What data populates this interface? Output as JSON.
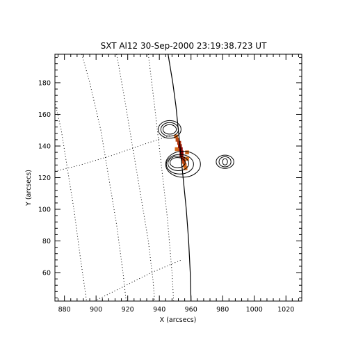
{
  "chart_data": {
    "type": "contour",
    "title": "SXT Al12 30-Sep-2000 23:19:38.723 UT",
    "xlabel": "X (arcsecs)",
    "ylabel": "Y (arcsecs)",
    "xlim": [
      874,
      1030
    ],
    "ylim": [
      42,
      198
    ],
    "xticks": [
      880,
      900,
      920,
      940,
      960,
      980,
      1000,
      1020
    ],
    "yticks": [
      60,
      80,
      100,
      120,
      140,
      160,
      180
    ],
    "xminor_step": 4,
    "yminor_step": 4,
    "grid": "heliographic (dotted)",
    "limb": [
      [
        945.5,
        198
      ],
      [
        948.5,
        180
      ],
      [
        950.5,
        165
      ],
      [
        952,
        150
      ],
      [
        953.5,
        135
      ],
      [
        955.5,
        115
      ],
      [
        957,
        100
      ],
      [
        958.5,
        80
      ],
      [
        959.5,
        60
      ],
      [
        960,
        42
      ]
    ],
    "grid_lines": [
      [
        [
          874,
          168
        ],
        [
          878,
          150
        ],
        [
          882,
          125
        ],
        [
          886,
          100
        ],
        [
          890,
          70
        ],
        [
          894,
          42
        ]
      ],
      [
        [
          891,
          198
        ],
        [
          896,
          180
        ],
        [
          903,
          150
        ],
        [
          908,
          120
        ],
        [
          913,
          90
        ],
        [
          917,
          60
        ],
        [
          919,
          42
        ]
      ],
      [
        [
          913,
          198
        ],
        [
          918,
          170
        ],
        [
          923,
          140
        ],
        [
          928,
          110
        ],
        [
          933,
          80
        ],
        [
          936,
          55
        ],
        [
          937,
          42
        ]
      ],
      [
        [
          933,
          198
        ],
        [
          937,
          165
        ],
        [
          941,
          130
        ],
        [
          945,
          95
        ],
        [
          948,
          60
        ],
        [
          949,
          42
        ]
      ],
      [
        [
          874,
          124
        ],
        [
          890,
          128
        ],
        [
          910,
          134
        ],
        [
          930,
          141
        ],
        [
          948,
          147
        ]
      ],
      [
        [
          899,
          42
        ],
        [
          915,
          50
        ],
        [
          935,
          60
        ],
        [
          954,
          68
        ]
      ]
    ],
    "contours": [
      {
        "cx": 946.5,
        "cy": 150.5,
        "rx": 4.2,
        "ry": 3.0
      },
      {
        "cx": 946.5,
        "cy": 150.5,
        "rx": 5.6,
        "ry": 4.3
      },
      {
        "cx": 946.5,
        "cy": 150.5,
        "rx": 7.2,
        "ry": 5.6
      },
      {
        "cx": 951.5,
        "cy": 129.5,
        "rx": 4.8,
        "ry": 3.2
      },
      {
        "cx": 952.0,
        "cy": 129.0,
        "rx": 6.6,
        "ry": 4.6
      },
      {
        "cx": 953.0,
        "cy": 128.5,
        "rx": 8.6,
        "ry": 6.2
      },
      {
        "cx": 955.0,
        "cy": 128.5,
        "rx": 11.0,
        "ry": 8.2
      },
      {
        "cx": 981.5,
        "cy": 130.0,
        "rx": 1.6,
        "ry": 2.0
      },
      {
        "cx": 981.5,
        "cy": 130.0,
        "rx": 3.8,
        "ry": 3.2
      },
      {
        "cx": 981.5,
        "cy": 130.0,
        "rx": 5.6,
        "ry": 4.2
      }
    ],
    "source_pixels": [
      {
        "x": 950.5,
        "y": 146,
        "level": 0.35
      },
      {
        "x": 951.5,
        "y": 144,
        "level": 0.55
      },
      {
        "x": 952.5,
        "y": 142,
        "level": 0.7
      },
      {
        "x": 953,
        "y": 140,
        "level": 0.85
      },
      {
        "x": 953.5,
        "y": 138,
        "level": 1.0
      },
      {
        "x": 954,
        "y": 136,
        "level": 1.0
      },
      {
        "x": 954,
        "y": 134,
        "level": 0.9
      },
      {
        "x": 955,
        "y": 132,
        "level": 0.75
      },
      {
        "x": 955.5,
        "y": 130,
        "level": 0.55
      },
      {
        "x": 956,
        "y": 128,
        "level": 0.4
      },
      {
        "x": 956.5,
        "y": 126,
        "level": 0.3
      },
      {
        "x": 957.5,
        "y": 136,
        "level": 0.35
      },
      {
        "x": 957.5,
        "y": 132,
        "level": 0.3
      },
      {
        "x": 951,
        "y": 138,
        "level": 0.35
      }
    ]
  }
}
